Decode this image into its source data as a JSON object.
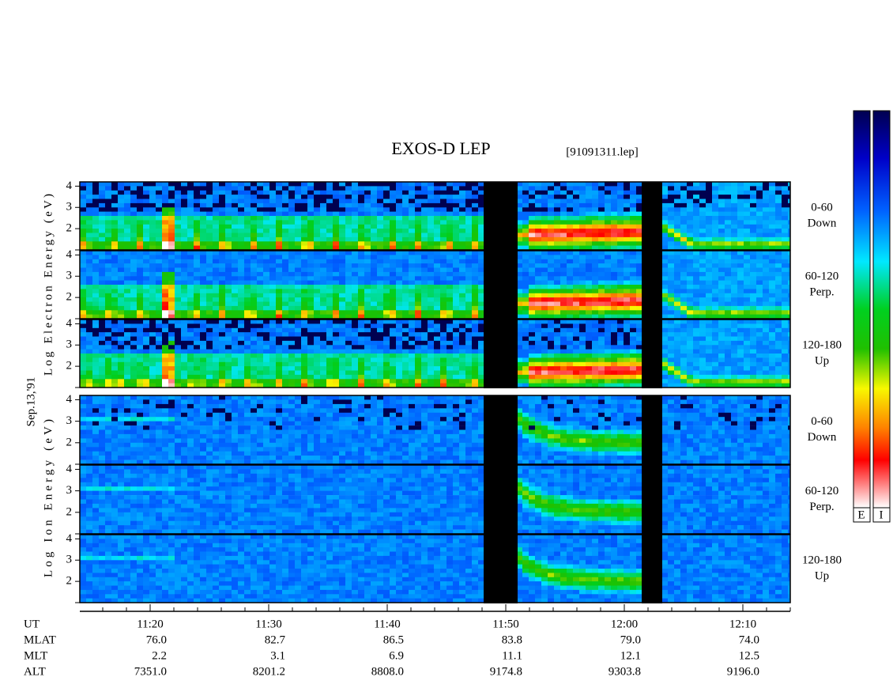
{
  "header": {
    "title": "EXOS-D LEP",
    "file": "[91091311.lep]"
  },
  "date": "Sep.13,'91",
  "electron": {
    "ylabel": "Log Electron Energy (eV)",
    "ylim": [
      1,
      4.2
    ],
    "yticks": [
      2,
      3,
      4
    ],
    "channels": [
      {
        "angle": "0-60",
        "direction": "Down"
      },
      {
        "angle": "60-120",
        "direction": "Perp."
      },
      {
        "angle": "120-180",
        "direction": "Up"
      }
    ]
  },
  "ion": {
    "ylabel": "Log Ion Energy (eV)",
    "ylim": [
      1,
      4.2
    ],
    "yticks": [
      2,
      3,
      4
    ],
    "channels": [
      {
        "angle": "0-60",
        "direction": "Down"
      },
      {
        "angle": "60-120",
        "direction": "Perp."
      },
      {
        "angle": "120-180",
        "direction": "Up"
      }
    ]
  },
  "colorbars": [
    "E",
    "I"
  ],
  "ephemeris": {
    "rows": [
      {
        "name": "UT",
        "values": [
          "11:20",
          "11:30",
          "11:40",
          "11:50",
          "12:00",
          "12:10"
        ]
      },
      {
        "name": "MLAT",
        "values": [
          "76.0",
          "82.7",
          "86.5",
          "83.8",
          "79.0",
          "74.0"
        ]
      },
      {
        "name": "MLT",
        "values": [
          "2.2",
          "3.1",
          "6.9",
          "11.1",
          "12.1",
          "12.5"
        ]
      },
      {
        "name": "ALT",
        "values": [
          "7351.0",
          "8201.2",
          "8808.0",
          "9174.8",
          "9303.8",
          "9196.0"
        ]
      }
    ]
  }
}
